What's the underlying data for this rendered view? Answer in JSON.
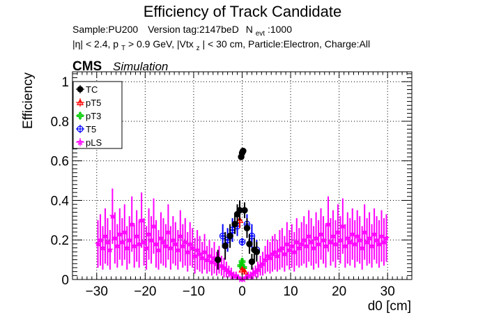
{
  "chart_data": {
    "type": "scatter",
    "title": "Efficiency of Track Candidate",
    "subtitle_line1": {
      "sample": "Sample:PU200",
      "version": "Version tag:2147beD",
      "nevt_label": "N",
      "nevt_sub": "evt",
      "nevt_value": ":1000"
    },
    "subtitle_line2": {
      "eta": "|η| < 2.4, p",
      "pt_sub": "T",
      "pt_cut": " > 0.9 GeV, |Vtx",
      "vtx_sub": "z",
      "rest": "| < 30 cm, Particle:Electron, Charge:All"
    },
    "cms_label": "CMS",
    "simulation_label": "Simulation",
    "xlabel": "d0 [cm]",
    "ylabel": "Efficiency",
    "xlim": [
      -35,
      35
    ],
    "ylim": [
      0,
      1.05
    ],
    "xticks": [
      -30,
      -20,
      -10,
      0,
      10,
      20,
      30
    ],
    "xtick_labels": [
      "−30",
      "−20",
      "−10",
      "0",
      "10",
      "20",
      "30"
    ],
    "yticks": [
      0,
      0.2,
      0.4,
      0.6,
      0.8,
      1
    ],
    "ytick_labels": [
      "0",
      "0.2",
      "0.4",
      "0.6",
      "0.8",
      "1"
    ],
    "grid": true,
    "legend_position": "top-left",
    "colors": {
      "TC": "#000000",
      "pT5": "#ff0000",
      "pT3": "#00cc00",
      "T5": "#0000ff",
      "pLS": "#ff00ff"
    },
    "series": [
      {
        "name": "TC",
        "marker": "filled-circle",
        "points": [
          {
            "x": -5.0,
            "y": 0.1,
            "err": 0.05
          },
          {
            "x": -3.5,
            "y": 0.17,
            "err": 0.07
          },
          {
            "x": -2.5,
            "y": 0.22,
            "err": 0.06
          },
          {
            "x": -1.5,
            "y": 0.28,
            "err": 0.05
          },
          {
            "x": -1.0,
            "y": 0.33,
            "err": 0.05
          },
          {
            "x": -0.5,
            "y": 0.35,
            "err": 0.05
          },
          {
            "x": -0.2,
            "y": 0.62,
            "err": 0.01
          },
          {
            "x": 0.0,
            "y": 0.64,
            "err": 0.01
          },
          {
            "x": 0.2,
            "y": 0.65,
            "err": 0.01
          },
          {
            "x": 0.5,
            "y": 0.35,
            "err": 0.04
          },
          {
            "x": 1.0,
            "y": 0.26,
            "err": 0.05
          },
          {
            "x": 1.5,
            "y": 0.18,
            "err": 0.05
          },
          {
            "x": 2.0,
            "y": 0.09,
            "err": 0.04
          },
          {
            "x": 2.5,
            "y": 0.15,
            "err": 0.06
          },
          {
            "x": 3.0,
            "y": 0.14,
            "err": 0.05
          }
        ]
      },
      {
        "name": "pT5",
        "marker": "open-triangle",
        "points": [
          {
            "x": -0.5,
            "y": 0.3,
            "err": 0.04
          },
          {
            "x": 0.0,
            "y": 0.05,
            "err": 0.01
          },
          {
            "x": 0.5,
            "y": 0.04,
            "err": 0.01
          }
        ]
      },
      {
        "name": "pT3",
        "marker": "open-cross",
        "points": [
          {
            "x": -0.3,
            "y": 0.07,
            "err": 0.02
          },
          {
            "x": 0.0,
            "y": 0.09,
            "err": 0.02
          },
          {
            "x": 0.3,
            "y": 0.06,
            "err": 0.02
          }
        ]
      },
      {
        "name": "T5",
        "marker": "open-circle",
        "points": [
          {
            "x": -4.0,
            "y": 0.22,
            "err": 0.06
          },
          {
            "x": -3.0,
            "y": 0.2,
            "err": 0.06
          },
          {
            "x": -2.0,
            "y": 0.25,
            "err": 0.06
          },
          {
            "x": -1.0,
            "y": 0.27,
            "err": 0.05
          },
          {
            "x": 0.0,
            "y": 0.19,
            "err": 0.02
          },
          {
            "x": 1.0,
            "y": 0.28,
            "err": 0.05
          },
          {
            "x": 2.0,
            "y": 0.22,
            "err": 0.06
          },
          {
            "x": 3.0,
            "y": 0.15,
            "err": 0.05
          }
        ]
      },
      {
        "name": "pLS",
        "marker": "open-star",
        "x": [
          -29.75,
          -29.25,
          -28.75,
          -28.25,
          -27.75,
          -27.25,
          -26.75,
          -26.25,
          -25.75,
          -25.25,
          -24.75,
          -24.25,
          -23.75,
          -23.25,
          -22.75,
          -22.25,
          -21.75,
          -21.25,
          -20.75,
          -20.25,
          -19.75,
          -19.25,
          -18.75,
          -18.25,
          -17.75,
          -17.25,
          -16.75,
          -16.25,
          -15.75,
          -15.25,
          -14.75,
          -14.25,
          -13.75,
          -13.25,
          -12.75,
          -12.25,
          -11.75,
          -11.25,
          -10.75,
          -10.25,
          -9.75,
          -9.25,
          -8.75,
          -8.25,
          -7.75,
          -7.25,
          -6.75,
          -6.25,
          -5.75,
          -5.25,
          -4.75,
          -4.25,
          -3.75,
          -3.25,
          -2.75,
          -2.25,
          -1.75,
          -1.25,
          -0.75,
          -0.25,
          0.25,
          0.75,
          1.25,
          1.75,
          2.25,
          2.75,
          3.25,
          3.75,
          4.25,
          4.75,
          5.25,
          5.75,
          6.25,
          6.75,
          7.25,
          7.75,
          8.25,
          8.75,
          9.25,
          9.75,
          10.25,
          10.75,
          11.25,
          11.75,
          12.25,
          12.75,
          13.25,
          13.75,
          14.25,
          14.75,
          15.25,
          15.75,
          16.25,
          16.75,
          17.25,
          17.75,
          18.25,
          18.75,
          19.25,
          19.75,
          20.25,
          20.75,
          21.25,
          21.75,
          22.25,
          22.75,
          23.25,
          23.75,
          24.25,
          24.75,
          25.25,
          25.75,
          26.25,
          26.75,
          27.25,
          27.75,
          28.25,
          28.75,
          29.25,
          29.75
        ],
        "values": [
          0.18,
          0.2,
          0.16,
          0.22,
          0.19,
          0.15,
          0.32,
          0.21,
          0.17,
          0.23,
          0.19,
          0.24,
          0.16,
          0.2,
          0.28,
          0.17,
          0.22,
          0.18,
          0.3,
          0.19,
          0.16,
          0.23,
          0.2,
          0.27,
          0.18,
          0.15,
          0.21,
          0.19,
          0.17,
          0.24,
          0.16,
          0.2,
          0.18,
          0.15,
          0.22,
          0.17,
          0.19,
          0.14,
          0.18,
          0.16,
          0.12,
          0.15,
          0.13,
          0.11,
          0.14,
          0.1,
          0.12,
          0.09,
          0.11,
          0.08,
          0.1,
          0.07,
          0.06,
          0.05,
          0.04,
          0.03,
          0.02,
          0.02,
          0.01,
          0.0,
          0.0,
          0.01,
          0.02,
          0.02,
          0.03,
          0.04,
          0.05,
          0.07,
          0.08,
          0.1,
          0.12,
          0.11,
          0.13,
          0.14,
          0.12,
          0.15,
          0.16,
          0.13,
          0.18,
          0.15,
          0.17,
          0.14,
          0.19,
          0.16,
          0.18,
          0.2,
          0.17,
          0.22,
          0.19,
          0.16,
          0.21,
          0.18,
          0.23,
          0.2,
          0.17,
          0.28,
          0.19,
          0.22,
          0.18,
          0.24,
          0.2,
          0.27,
          0.17,
          0.21,
          0.19,
          0.23,
          0.18,
          0.22,
          0.2,
          0.16,
          0.24,
          0.19,
          0.21,
          0.17,
          0.23,
          0.2,
          0.18,
          0.22,
          0.19,
          0.21
        ],
        "errors": [
          0.12,
          0.13,
          0.11,
          0.14,
          0.12,
          0.1,
          0.14,
          0.13,
          0.11,
          0.13,
          0.12,
          0.14,
          0.11,
          0.12,
          0.14,
          0.11,
          0.13,
          0.12,
          0.14,
          0.12,
          0.11,
          0.13,
          0.12,
          0.14,
          0.12,
          0.1,
          0.13,
          0.12,
          0.11,
          0.14,
          0.11,
          0.12,
          0.11,
          0.1,
          0.13,
          0.11,
          0.12,
          0.1,
          0.11,
          0.1,
          0.09,
          0.1,
          0.09,
          0.08,
          0.09,
          0.07,
          0.08,
          0.07,
          0.08,
          0.06,
          0.07,
          0.05,
          0.05,
          0.04,
          0.03,
          0.03,
          0.02,
          0.02,
          0.01,
          0.01,
          0.01,
          0.01,
          0.02,
          0.02,
          0.03,
          0.03,
          0.04,
          0.05,
          0.06,
          0.07,
          0.08,
          0.08,
          0.09,
          0.09,
          0.08,
          0.1,
          0.1,
          0.09,
          0.11,
          0.1,
          0.11,
          0.1,
          0.12,
          0.1,
          0.11,
          0.12,
          0.11,
          0.13,
          0.12,
          0.11,
          0.13,
          0.12,
          0.13,
          0.12,
          0.11,
          0.14,
          0.12,
          0.13,
          0.12,
          0.14,
          0.12,
          0.14,
          0.11,
          0.13,
          0.12,
          0.13,
          0.12,
          0.13,
          0.12,
          0.11,
          0.14,
          0.12,
          0.13,
          0.11,
          0.13,
          0.12,
          0.12,
          0.13,
          0.12,
          0.12
        ]
      }
    ]
  }
}
